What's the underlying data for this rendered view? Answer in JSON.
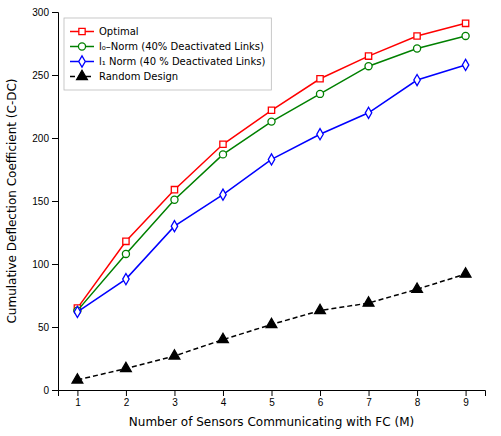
{
  "chart_data": {
    "type": "line",
    "x": [
      1,
      2,
      3,
      4,
      5,
      6,
      7,
      8,
      9
    ],
    "series": [
      {
        "name": "Optimal",
        "color": "#ff0000",
        "marker": "square",
        "line_style": "solid",
        "values": [
          65,
          118,
          159,
          195,
          222,
          247,
          265,
          281,
          291
        ]
      },
      {
        "name": "l₀–Norm (40% Deactivated Links)",
        "color": "#008000",
        "marker": "circle",
        "line_style": "solid",
        "values": [
          63,
          108,
          151,
          187,
          213,
          235,
          257,
          271,
          281
        ]
      },
      {
        "name": "l₁ Norm (40 % Deactivated Links)",
        "color": "#0000ff",
        "marker": "diamond",
        "line_style": "solid",
        "values": [
          62,
          88,
          130,
          155,
          183,
          203,
          220,
          246,
          258
        ]
      },
      {
        "name": "Random Design",
        "color": "#000000",
        "marker": "triangle",
        "line_style": "dashed",
        "values": [
          8,
          17,
          27,
          40,
          52,
          63,
          69,
          80,
          92
        ]
      }
    ],
    "xlabel": "Number of Sensors Communicating with FC (M)",
    "ylabel": "Cumulative Deflection Coefficient (C-DC)",
    "xlim": [
      0.6,
      9.4
    ],
    "ylim": [
      0,
      300
    ],
    "xticks": [
      1,
      2,
      3,
      4,
      5,
      6,
      7,
      8,
      9
    ],
    "yticks": [
      0,
      50,
      100,
      150,
      200,
      250,
      300
    ],
    "legend": "upper left",
    "grid": false
  }
}
